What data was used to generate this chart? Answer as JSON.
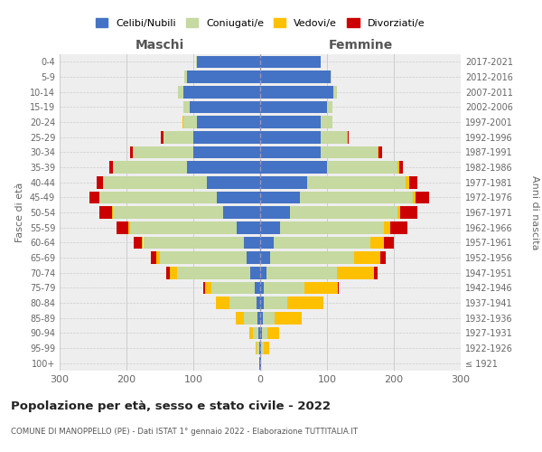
{
  "age_groups": [
    "100+",
    "95-99",
    "90-94",
    "85-89",
    "80-84",
    "75-79",
    "70-74",
    "65-69",
    "60-64",
    "55-59",
    "50-54",
    "45-49",
    "40-44",
    "35-39",
    "30-34",
    "25-29",
    "20-24",
    "15-19",
    "10-14",
    "5-9",
    "0-4"
  ],
  "birth_years": [
    "≤ 1921",
    "1922-1926",
    "1927-1931",
    "1932-1936",
    "1937-1941",
    "1942-1946",
    "1947-1951",
    "1952-1956",
    "1957-1961",
    "1962-1966",
    "1967-1971",
    "1972-1976",
    "1977-1981",
    "1982-1986",
    "1987-1991",
    "1992-1996",
    "1997-2001",
    "2002-2006",
    "2007-2011",
    "2012-2016",
    "2017-2021"
  ],
  "maschi": {
    "celibi": [
      1,
      2,
      3,
      4,
      6,
      8,
      15,
      20,
      25,
      35,
      55,
      65,
      80,
      110,
      100,
      100,
      95,
      105,
      115,
      110,
      95
    ],
    "coniugati": [
      0,
      3,
      8,
      20,
      40,
      65,
      110,
      130,
      150,
      160,
      165,
      175,
      155,
      110,
      90,
      45,
      20,
      10,
      8,
      3,
      1
    ],
    "vedovi": [
      0,
      2,
      5,
      12,
      20,
      10,
      10,
      5,
      2,
      2,
      1,
      1,
      0,
      0,
      0,
      0,
      1,
      0,
      0,
      0,
      0
    ],
    "divorziati": [
      0,
      0,
      0,
      0,
      0,
      2,
      5,
      8,
      12,
      18,
      20,
      15,
      10,
      5,
      5,
      3,
      0,
      0,
      0,
      0,
      0
    ]
  },
  "femmine": {
    "nubili": [
      1,
      2,
      3,
      4,
      5,
      6,
      10,
      15,
      20,
      30,
      45,
      60,
      70,
      100,
      90,
      90,
      90,
      100,
      110,
      105,
      90
    ],
    "coniugate": [
      0,
      3,
      8,
      18,
      35,
      60,
      105,
      125,
      145,
      155,
      160,
      168,
      148,
      105,
      85,
      40,
      18,
      8,
      5,
      2,
      1
    ],
    "vedove": [
      0,
      8,
      18,
      40,
      55,
      50,
      55,
      40,
      20,
      10,
      5,
      5,
      5,
      3,
      2,
      1,
      0,
      0,
      0,
      0,
      0
    ],
    "divorziate": [
      0,
      0,
      0,
      0,
      0,
      2,
      5,
      8,
      15,
      25,
      25,
      20,
      12,
      5,
      5,
      2,
      0,
      0,
      0,
      0,
      0
    ]
  },
  "color_celibi": "#4472c4",
  "color_coniugati": "#c5d9a0",
  "color_vedovi": "#ffc000",
  "color_divorziati": "#cc0000",
  "title": "Popolazione per età, sesso e stato civile - 2022",
  "subtitle": "COMUNE DI MANOPPELLO (PE) - Dati ISTAT 1° gennaio 2022 - Elaborazione TUTTITALIA.IT",
  "ylabel": "Fasce di età",
  "ylabel_right": "Anni di nascita",
  "xlabel_left": "Maschi",
  "xlabel_right": "Femmine",
  "xlim": 300,
  "bg_color": "#ffffff",
  "grid_color": "#cccccc"
}
